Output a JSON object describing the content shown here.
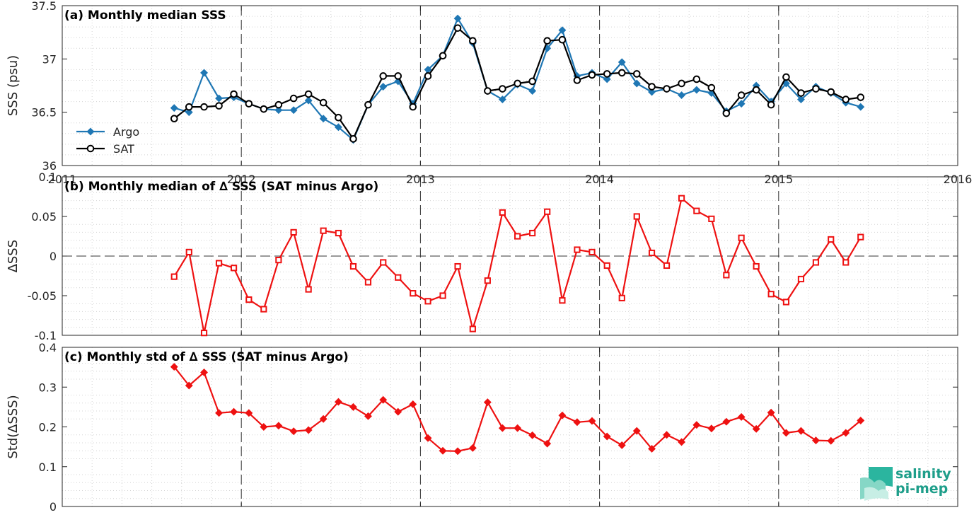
{
  "chart_data": [
    {
      "id": "a",
      "type": "line",
      "title": "(a) Monthly median SSS",
      "ylabel": "SSS (psu)",
      "xlim": [
        2011,
        2016
      ],
      "ylim": [
        36,
        37.5
      ],
      "xticks": [
        "2011",
        "2012",
        "2013",
        "2014",
        "2015",
        "2016"
      ],
      "yticks": [
        "36",
        "36.5",
        "37",
        "37.5"
      ],
      "grid": true,
      "legend_position": "lower-left",
      "x": [
        2011.625,
        2011.708,
        2011.792,
        2011.875,
        2011.958,
        2012.042,
        2012.125,
        2012.208,
        2012.292,
        2012.375,
        2012.458,
        2012.542,
        2012.625,
        2012.708,
        2012.792,
        2012.875,
        2012.958,
        2013.042,
        2013.125,
        2013.208,
        2013.292,
        2013.375,
        2013.458,
        2013.542,
        2013.625,
        2013.708,
        2013.792,
        2013.875,
        2013.958,
        2014.042,
        2014.125,
        2014.208,
        2014.292,
        2014.375,
        2014.458,
        2014.542,
        2014.625,
        2014.708,
        2014.792,
        2014.875,
        2014.958,
        2015.042,
        2015.125,
        2015.208,
        2015.292,
        2015.375,
        2015.458
      ],
      "series": [
        {
          "name": "Argo",
          "color": "#1f77b4",
          "marker": "diamond",
          "values": [
            36.54,
            36.5,
            36.87,
            36.63,
            36.64,
            36.58,
            36.53,
            36.52,
            36.52,
            36.61,
            36.44,
            36.36,
            36.24,
            36.57,
            36.74,
            36.79,
            36.58,
            36.9,
            37.03,
            37.38,
            37.15,
            36.7,
            36.62,
            36.76,
            36.7,
            37.1,
            37.27,
            36.84,
            36.87,
            36.81,
            36.97,
            36.77,
            36.69,
            36.72,
            36.66,
            36.71,
            36.68,
            36.51,
            36.58,
            36.75,
            36.6,
            36.77,
            36.62,
            36.74,
            36.68,
            36.59,
            36.55
          ]
        },
        {
          "name": "SAT",
          "color": "#000000",
          "marker": "circle",
          "values": [
            36.44,
            36.55,
            36.55,
            36.56,
            36.67,
            36.58,
            36.53,
            36.57,
            36.63,
            36.67,
            36.59,
            36.45,
            36.25,
            36.57,
            36.84,
            36.84,
            36.55,
            36.84,
            37.03,
            37.29,
            37.17,
            36.7,
            36.72,
            36.77,
            36.79,
            37.17,
            37.18,
            36.8,
            36.85,
            36.86,
            36.87,
            36.86,
            36.74,
            36.72,
            36.77,
            36.81,
            36.73,
            36.49,
            36.66,
            36.71,
            36.57,
            36.83,
            36.68,
            36.72,
            36.69,
            36.62,
            36.64
          ]
        }
      ]
    },
    {
      "id": "b",
      "type": "line",
      "title": "(b) Monthly median of ∆ SSS (SAT minus Argo)",
      "ylabel": "∆SSS",
      "xlim": [
        2011,
        2016
      ],
      "ylim": [
        -0.1,
        0.1
      ],
      "yticks": [
        "-0.1",
        "-0.05",
        "0",
        "0.05",
        "0.1"
      ],
      "grid": true,
      "zero_line": true,
      "x": [
        2011.625,
        2011.708,
        2011.792,
        2011.875,
        2011.958,
        2012.042,
        2012.125,
        2012.208,
        2012.292,
        2012.375,
        2012.458,
        2012.542,
        2012.625,
        2012.708,
        2012.792,
        2012.875,
        2012.958,
        2013.042,
        2013.125,
        2013.208,
        2013.292,
        2013.375,
        2013.458,
        2013.542,
        2013.625,
        2013.708,
        2013.792,
        2013.875,
        2013.958,
        2014.042,
        2014.125,
        2014.208,
        2014.292,
        2014.375,
        2014.458,
        2014.542,
        2014.625,
        2014.708,
        2014.792,
        2014.875,
        2014.958,
        2015.042,
        2015.125,
        2015.208,
        2015.292,
        2015.375,
        2015.458
      ],
      "series": [
        {
          "color": "#ee1111",
          "marker": "square",
          "values": [
            -0.026,
            0.005,
            -0.097,
            -0.009,
            -0.015,
            -0.055,
            -0.067,
            -0.005,
            0.03,
            -0.042,
            0.032,
            0.029,
            -0.013,
            -0.033,
            -0.008,
            -0.027,
            -0.047,
            -0.057,
            -0.05,
            -0.013,
            -0.092,
            -0.031,
            0.055,
            0.025,
            0.029,
            0.056,
            -0.056,
            0.008,
            0.005,
            -0.012,
            -0.053,
            0.05,
            0.004,
            -0.012,
            0.073,
            0.057,
            0.047,
            -0.024,
            0.023,
            -0.013,
            -0.048,
            -0.058,
            -0.029,
            -0.008,
            0.021,
            -0.008,
            0.024
          ]
        }
      ]
    },
    {
      "id": "c",
      "type": "line",
      "title": "(c) Monthly std of ∆ SSS (SAT minus Argo)",
      "ylabel": "Std(∆SSS)",
      "xlim": [
        2011,
        2016
      ],
      "ylim": [
        0,
        0.4
      ],
      "yticks": [
        "0",
        "0.1",
        "0.2",
        "0.3",
        "0.4"
      ],
      "grid": true,
      "x": [
        2011.625,
        2011.708,
        2011.792,
        2011.875,
        2011.958,
        2012.042,
        2012.125,
        2012.208,
        2012.292,
        2012.375,
        2012.458,
        2012.542,
        2012.625,
        2012.708,
        2012.792,
        2012.875,
        2012.958,
        2013.042,
        2013.125,
        2013.208,
        2013.292,
        2013.375,
        2013.458,
        2013.542,
        2013.625,
        2013.708,
        2013.792,
        2013.875,
        2013.958,
        2014.042,
        2014.125,
        2014.208,
        2014.292,
        2014.375,
        2014.458,
        2014.542,
        2014.625,
        2014.708,
        2014.792,
        2014.875,
        2014.958,
        2015.042,
        2015.125,
        2015.208,
        2015.292,
        2015.375,
        2015.458
      ],
      "series": [
        {
          "color": "#ee1111",
          "marker": "diamond",
          "values": [
            0.351,
            0.304,
            0.337,
            0.235,
            0.238,
            0.235,
            0.2,
            0.203,
            0.189,
            0.192,
            0.22,
            0.263,
            0.25,
            0.227,
            0.268,
            0.238,
            0.257,
            0.172,
            0.14,
            0.139,
            0.147,
            0.262,
            0.197,
            0.197,
            0.179,
            0.158,
            0.229,
            0.212,
            0.215,
            0.176,
            0.154,
            0.19,
            0.145,
            0.18,
            0.162,
            0.205,
            0.196,
            0.213,
            0.225,
            0.195,
            0.236,
            0.185,
            0.19,
            0.166,
            0.165,
            0.185,
            0.216
          ]
        }
      ]
    }
  ],
  "logo": {
    "line1": "salinity",
    "line2": "pi-mep"
  }
}
